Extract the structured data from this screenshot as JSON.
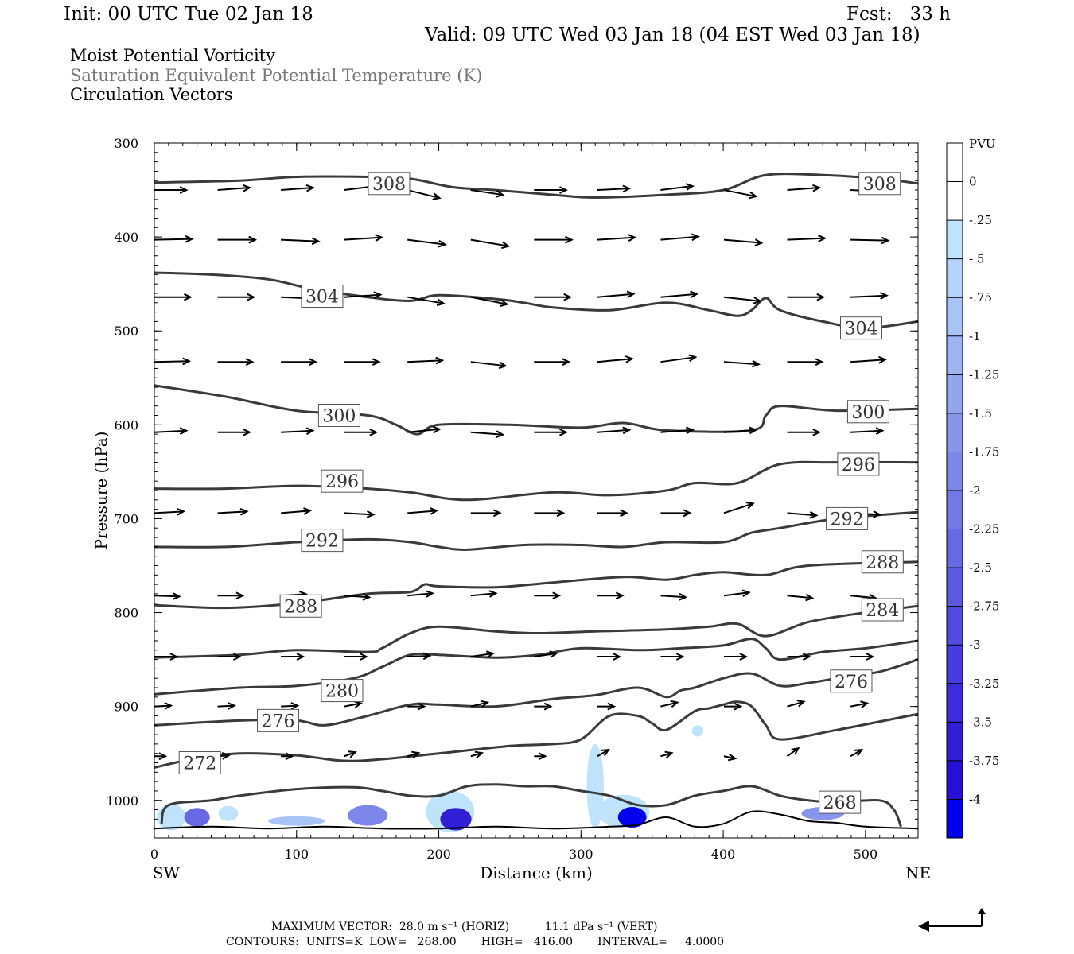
{
  "header": {
    "init": "Init: 00 UTC Tue 02 Jan 18",
    "fcst": "Fcst:   33 h",
    "valid": "Valid: 09 UTC Wed 03 Jan 18 (04 EST Wed 03 Jan 18)",
    "line1": "Moist Potential Vorticity",
    "line2": "Saturation Equivalent Potential Temperature (K)",
    "line3": "Circulation Vectors"
  },
  "footer": {
    "vector_line": "MAXIMUM VECTOR:  28.0 m s⁻¹ (HORIZ)          11.1 dPa s⁻¹ (VERT)",
    "contour_line": "CONTOURS:  UNITS=K  LOW=   268.00       HIGH=   416.00       INTERVAL=     4.0000"
  },
  "colors": {
    "contour": "#3a3a3a",
    "vector": "#000000",
    "terrain": "#000000",
    "pv_light": "#bfe3fb",
    "pv_dark": "#0000ee"
  },
  "chart_data": {
    "type": "cross-section",
    "xlabel": "Distance (km)",
    "ylabel": "Pressure (hPa)",
    "x_left_label": "SW",
    "x_right_label": "NE",
    "xlim": [
      0,
      537
    ],
    "ylim": [
      300,
      1040
    ],
    "x_ticks": [
      0,
      100,
      200,
      300,
      400,
      500
    ],
    "y_ticks": [
      300,
      400,
      500,
      600,
      700,
      800,
      900,
      1000
    ],
    "colorbar": {
      "unit": "PVU",
      "labels": [
        "0",
        "-.25",
        "-.5",
        "-.75",
        "-1",
        "-1.25",
        "-1.5",
        "-1.75",
        "-2",
        "-2.25",
        "-2.5",
        "-2.75",
        "-3",
        "-3.25",
        "-3.5",
        "-3.75",
        "-4"
      ],
      "colors": [
        "#ffffff",
        "#ffffff",
        "#bfe3fb",
        "#b3d3f8",
        "#a8c3f5",
        "#9db3f3",
        "#93a4f0",
        "#8895ed",
        "#7e86ea",
        "#7377e7",
        "#6868e4",
        "#5d5ae2",
        "#524be0",
        "#473cdd",
        "#3c2ddb",
        "#311fd8",
        "#2610d6",
        "#0000ee"
      ]
    },
    "theta_e_contours": [
      {
        "value": 308,
        "labels": [
          {
            "x": 165,
            "p": 343
          },
          {
            "x": 510,
            "p": 343
          }
        ],
        "points": [
          [
            0,
            342
          ],
          [
            60,
            340
          ],
          [
            100,
            336
          ],
          [
            150,
            336
          ],
          [
            180,
            338
          ],
          [
            210,
            347
          ],
          [
            240,
            350
          ],
          [
            280,
            355
          ],
          [
            310,
            358
          ],
          [
            360,
            355
          ],
          [
            400,
            350
          ],
          [
            430,
            334
          ],
          [
            470,
            334
          ],
          [
            510,
            338
          ],
          [
            537,
            343
          ]
        ]
      },
      {
        "value": 304,
        "labels": [
          {
            "x": 118,
            "p": 463
          },
          {
            "x": 497,
            "p": 497
          }
        ],
        "points": [
          [
            0,
            438
          ],
          [
            40,
            440
          ],
          [
            80,
            445
          ],
          [
            110,
            455
          ],
          [
            150,
            464
          ],
          [
            180,
            468
          ],
          [
            200,
            462
          ],
          [
            240,
            466
          ],
          [
            260,
            470
          ],
          [
            280,
            475
          ],
          [
            320,
            478
          ],
          [
            360,
            470
          ],
          [
            390,
            478
          ],
          [
            410,
            484
          ],
          [
            420,
            478
          ],
          [
            430,
            465
          ],
          [
            440,
            478
          ],
          [
            470,
            490
          ],
          [
            500,
            497
          ],
          [
            537,
            490
          ]
        ]
      },
      {
        "value": 300,
        "labels": [
          {
            "x": 130,
            "p": 590
          },
          {
            "x": 502,
            "p": 586
          }
        ],
        "points": [
          [
            0,
            558
          ],
          [
            50,
            570
          ],
          [
            100,
            585
          ],
          [
            150,
            590
          ],
          [
            170,
            600
          ],
          [
            185,
            610
          ],
          [
            200,
            600
          ],
          [
            250,
            600
          ],
          [
            300,
            603
          ],
          [
            330,
            598
          ],
          [
            360,
            606
          ],
          [
            420,
            606
          ],
          [
            430,
            590
          ],
          [
            440,
            580
          ],
          [
            480,
            585
          ],
          [
            537,
            583
          ]
        ]
      },
      {
        "value": 296,
        "labels": [
          {
            "x": 132,
            "p": 660
          },
          {
            "x": 495,
            "p": 642
          }
        ],
        "points": [
          [
            0,
            668
          ],
          [
            50,
            668
          ],
          [
            100,
            665
          ],
          [
            150,
            668
          ],
          [
            180,
            672
          ],
          [
            220,
            680
          ],
          [
            280,
            672
          ],
          [
            320,
            675
          ],
          [
            360,
            670
          ],
          [
            380,
            662
          ],
          [
            410,
            662
          ],
          [
            440,
            642
          ],
          [
            480,
            640
          ],
          [
            537,
            640
          ]
        ]
      },
      {
        "value": 292,
        "labels": [
          {
            "x": 118,
            "p": 723
          },
          {
            "x": 487,
            "p": 700
          }
        ],
        "points": [
          [
            0,
            730
          ],
          [
            50,
            730
          ],
          [
            100,
            725
          ],
          [
            150,
            722
          ],
          [
            180,
            725
          ],
          [
            200,
            730
          ],
          [
            220,
            733
          ],
          [
            260,
            728
          ],
          [
            300,
            728
          ],
          [
            330,
            730
          ],
          [
            360,
            725
          ],
          [
            400,
            725
          ],
          [
            420,
            715
          ],
          [
            440,
            710
          ],
          [
            480,
            700
          ],
          [
            537,
            693
          ]
        ]
      },
      {
        "value": 288,
        "labels": [
          {
            "x": 103,
            "p": 793
          },
          {
            "x": 512,
            "p": 746
          }
        ],
        "points": [
          [
            0,
            792
          ],
          [
            50,
            795
          ],
          [
            100,
            790
          ],
          [
            150,
            780
          ],
          [
            180,
            778
          ],
          [
            190,
            770
          ],
          [
            200,
            772
          ],
          [
            240,
            773
          ],
          [
            280,
            768
          ],
          [
            330,
            762
          ],
          [
            360,
            765
          ],
          [
            380,
            760
          ],
          [
            400,
            757
          ],
          [
            430,
            760
          ],
          [
            460,
            750
          ],
          [
            537,
            746
          ]
        ]
      },
      {
        "value": 284,
        "labels": [
          {
            "x": 512,
            "p": 797
          }
        ],
        "points": [
          [
            0,
            848
          ],
          [
            60,
            845
          ],
          [
            100,
            840
          ],
          [
            150,
            842
          ],
          [
            160,
            838
          ],
          [
            180,
            822
          ],
          [
            200,
            815
          ],
          [
            240,
            820
          ],
          [
            270,
            822
          ],
          [
            310,
            820
          ],
          [
            360,
            818
          ],
          [
            390,
            815
          ],
          [
            410,
            812
          ],
          [
            430,
            825
          ],
          [
            460,
            810
          ],
          [
            500,
            800
          ],
          [
            537,
            793
          ]
        ]
      },
      {
        "value": 280,
        "labels": [
          {
            "x": 132,
            "p": 883
          }
        ],
        "points": [
          [
            0,
            887
          ],
          [
            60,
            880
          ],
          [
            100,
            878
          ],
          [
            140,
            870
          ],
          [
            160,
            858
          ],
          [
            180,
            845
          ],
          [
            200,
            845
          ],
          [
            240,
            848
          ],
          [
            270,
            845
          ],
          [
            300,
            838
          ],
          [
            340,
            840
          ],
          [
            370,
            838
          ],
          [
            400,
            835
          ],
          [
            420,
            828
          ],
          [
            430,
            838
          ],
          [
            440,
            850
          ],
          [
            470,
            842
          ],
          [
            500,
            838
          ],
          [
            537,
            830
          ]
        ]
      },
      {
        "value": 276,
        "labels": [
          {
            "x": 87,
            "p": 915
          },
          {
            "x": 490,
            "p": 873
          }
        ],
        "points": [
          [
            0,
            920
          ],
          [
            60,
            915
          ],
          [
            100,
            915
          ],
          [
            120,
            920
          ],
          [
            150,
            910
          ],
          [
            180,
            898
          ],
          [
            200,
            898
          ],
          [
            240,
            900
          ],
          [
            280,
            892
          ],
          [
            310,
            888
          ],
          [
            340,
            880
          ],
          [
            360,
            890
          ],
          [
            370,
            883
          ],
          [
            380,
            880
          ],
          [
            400,
            870
          ],
          [
            420,
            865
          ],
          [
            440,
            878
          ],
          [
            460,
            875
          ],
          [
            480,
            870
          ],
          [
            510,
            863
          ],
          [
            537,
            850
          ]
        ]
      },
      {
        "value": 272,
        "labels": [
          {
            "x": 32,
            "p": 960
          }
        ],
        "points": [
          [
            0,
            965
          ],
          [
            30,
            955
          ],
          [
            60,
            950
          ],
          [
            100,
            952
          ],
          [
            140,
            958
          ],
          [
            200,
            950
          ],
          [
            250,
            942
          ],
          [
            280,
            940
          ],
          [
            300,
            935
          ],
          [
            320,
            910
          ],
          [
            340,
            910
          ],
          [
            350,
            918
          ],
          [
            360,
            925
          ],
          [
            380,
            905
          ],
          [
            390,
            902
          ],
          [
            400,
            898
          ],
          [
            410,
            895
          ],
          [
            420,
            900
          ],
          [
            430,
            920
          ],
          [
            440,
            935
          ],
          [
            480,
            925
          ],
          [
            537,
            908
          ]
        ]
      },
      {
        "value": 268,
        "labels": [
          {
            "x": 482,
            "p": 1002
          }
        ],
        "points": [
          [
            5,
            1025
          ],
          [
            10,
            1005
          ],
          [
            40,
            1000
          ],
          [
            60,
            995
          ],
          [
            100,
            988
          ],
          [
            140,
            986
          ],
          [
            160,
            990
          ],
          [
            180,
            995
          ],
          [
            200,
            995
          ],
          [
            220,
            985
          ],
          [
            240,
            983
          ],
          [
            260,
            985
          ],
          [
            280,
            985
          ],
          [
            300,
            990
          ],
          [
            320,
            995
          ],
          [
            340,
            1005
          ],
          [
            360,
            1005
          ],
          [
            380,
            995
          ],
          [
            400,
            990
          ],
          [
            420,
            985
          ],
          [
            440,
            995
          ],
          [
            460,
            1000
          ],
          [
            480,
            1002
          ],
          [
            510,
            1000
          ],
          [
            520,
            1010
          ],
          [
            525,
            1028
          ]
        ]
      }
    ],
    "vector_rows": [
      {
        "p": 350,
        "u": 2.3,
        "v": [
          0,
          -3,
          -3,
          -5,
          10,
          6,
          0,
          -2,
          -5,
          8,
          -3,
          2
        ]
      },
      {
        "p": 403,
        "u": 2.7,
        "v": [
          -1,
          0,
          2,
          -3,
          6,
          8,
          0,
          -3,
          -4,
          4,
          -2,
          1
        ]
      },
      {
        "p": 464,
        "u": 2.6,
        "v": [
          0,
          0,
          2,
          -3,
          8,
          9,
          0,
          -4,
          -4,
          5,
          0,
          -2
        ]
      },
      {
        "p": 533,
        "u": 2.5,
        "v": [
          -1,
          0,
          0,
          0,
          -2,
          5,
          0,
          -4,
          -6,
          3,
          0,
          -3
        ]
      },
      {
        "p": 608,
        "u": 2.3,
        "v": [
          -2,
          0,
          -2,
          0,
          -4,
          3,
          0,
          -3,
          -3,
          -3,
          0,
          -2
        ]
      },
      {
        "p": 694,
        "u": 2.1,
        "v": [
          -2,
          -2,
          -3,
          2,
          -3,
          0,
          0,
          0,
          0,
          -12,
          3,
          2
        ]
      },
      {
        "p": 782,
        "u": 1.8,
        "v": [
          1,
          0,
          -2,
          2,
          -3,
          -3,
          0,
          0,
          2,
          -4,
          3,
          3
        ]
      },
      {
        "p": 847,
        "u": 1.6,
        "v": [
          0,
          0,
          0,
          0,
          -1,
          -4,
          -4,
          0,
          0,
          0,
          0,
          0
        ]
      },
      {
        "p": 900,
        "u": 1.2,
        "v": [
          -1,
          -1,
          -1,
          -4,
          0,
          -5,
          0,
          0,
          -5,
          0,
          -6,
          -4
        ]
      },
      {
        "p": 953,
        "u": 0.8,
        "v": [
          0,
          -1,
          0,
          -5,
          -4,
          -4,
          0,
          -8,
          -4,
          3,
          -10,
          -8
        ]
      }
    ],
    "terrain": [
      [
        0,
        1030
      ],
      [
        40,
        1028
      ],
      [
        80,
        1030
      ],
      [
        120,
        1028
      ],
      [
        160,
        1030
      ],
      [
        200,
        1030
      ],
      [
        240,
        1028
      ],
      [
        280,
        1030
      ],
      [
        320,
        1028
      ],
      [
        340,
        1026
      ],
      [
        360,
        1018
      ],
      [
        380,
        1028
      ],
      [
        400,
        1025
      ],
      [
        420,
        1012
      ],
      [
        440,
        1015
      ],
      [
        460,
        1022
      ],
      [
        480,
        1024
      ],
      [
        500,
        1028
      ],
      [
        537,
        1030
      ]
    ]
  }
}
